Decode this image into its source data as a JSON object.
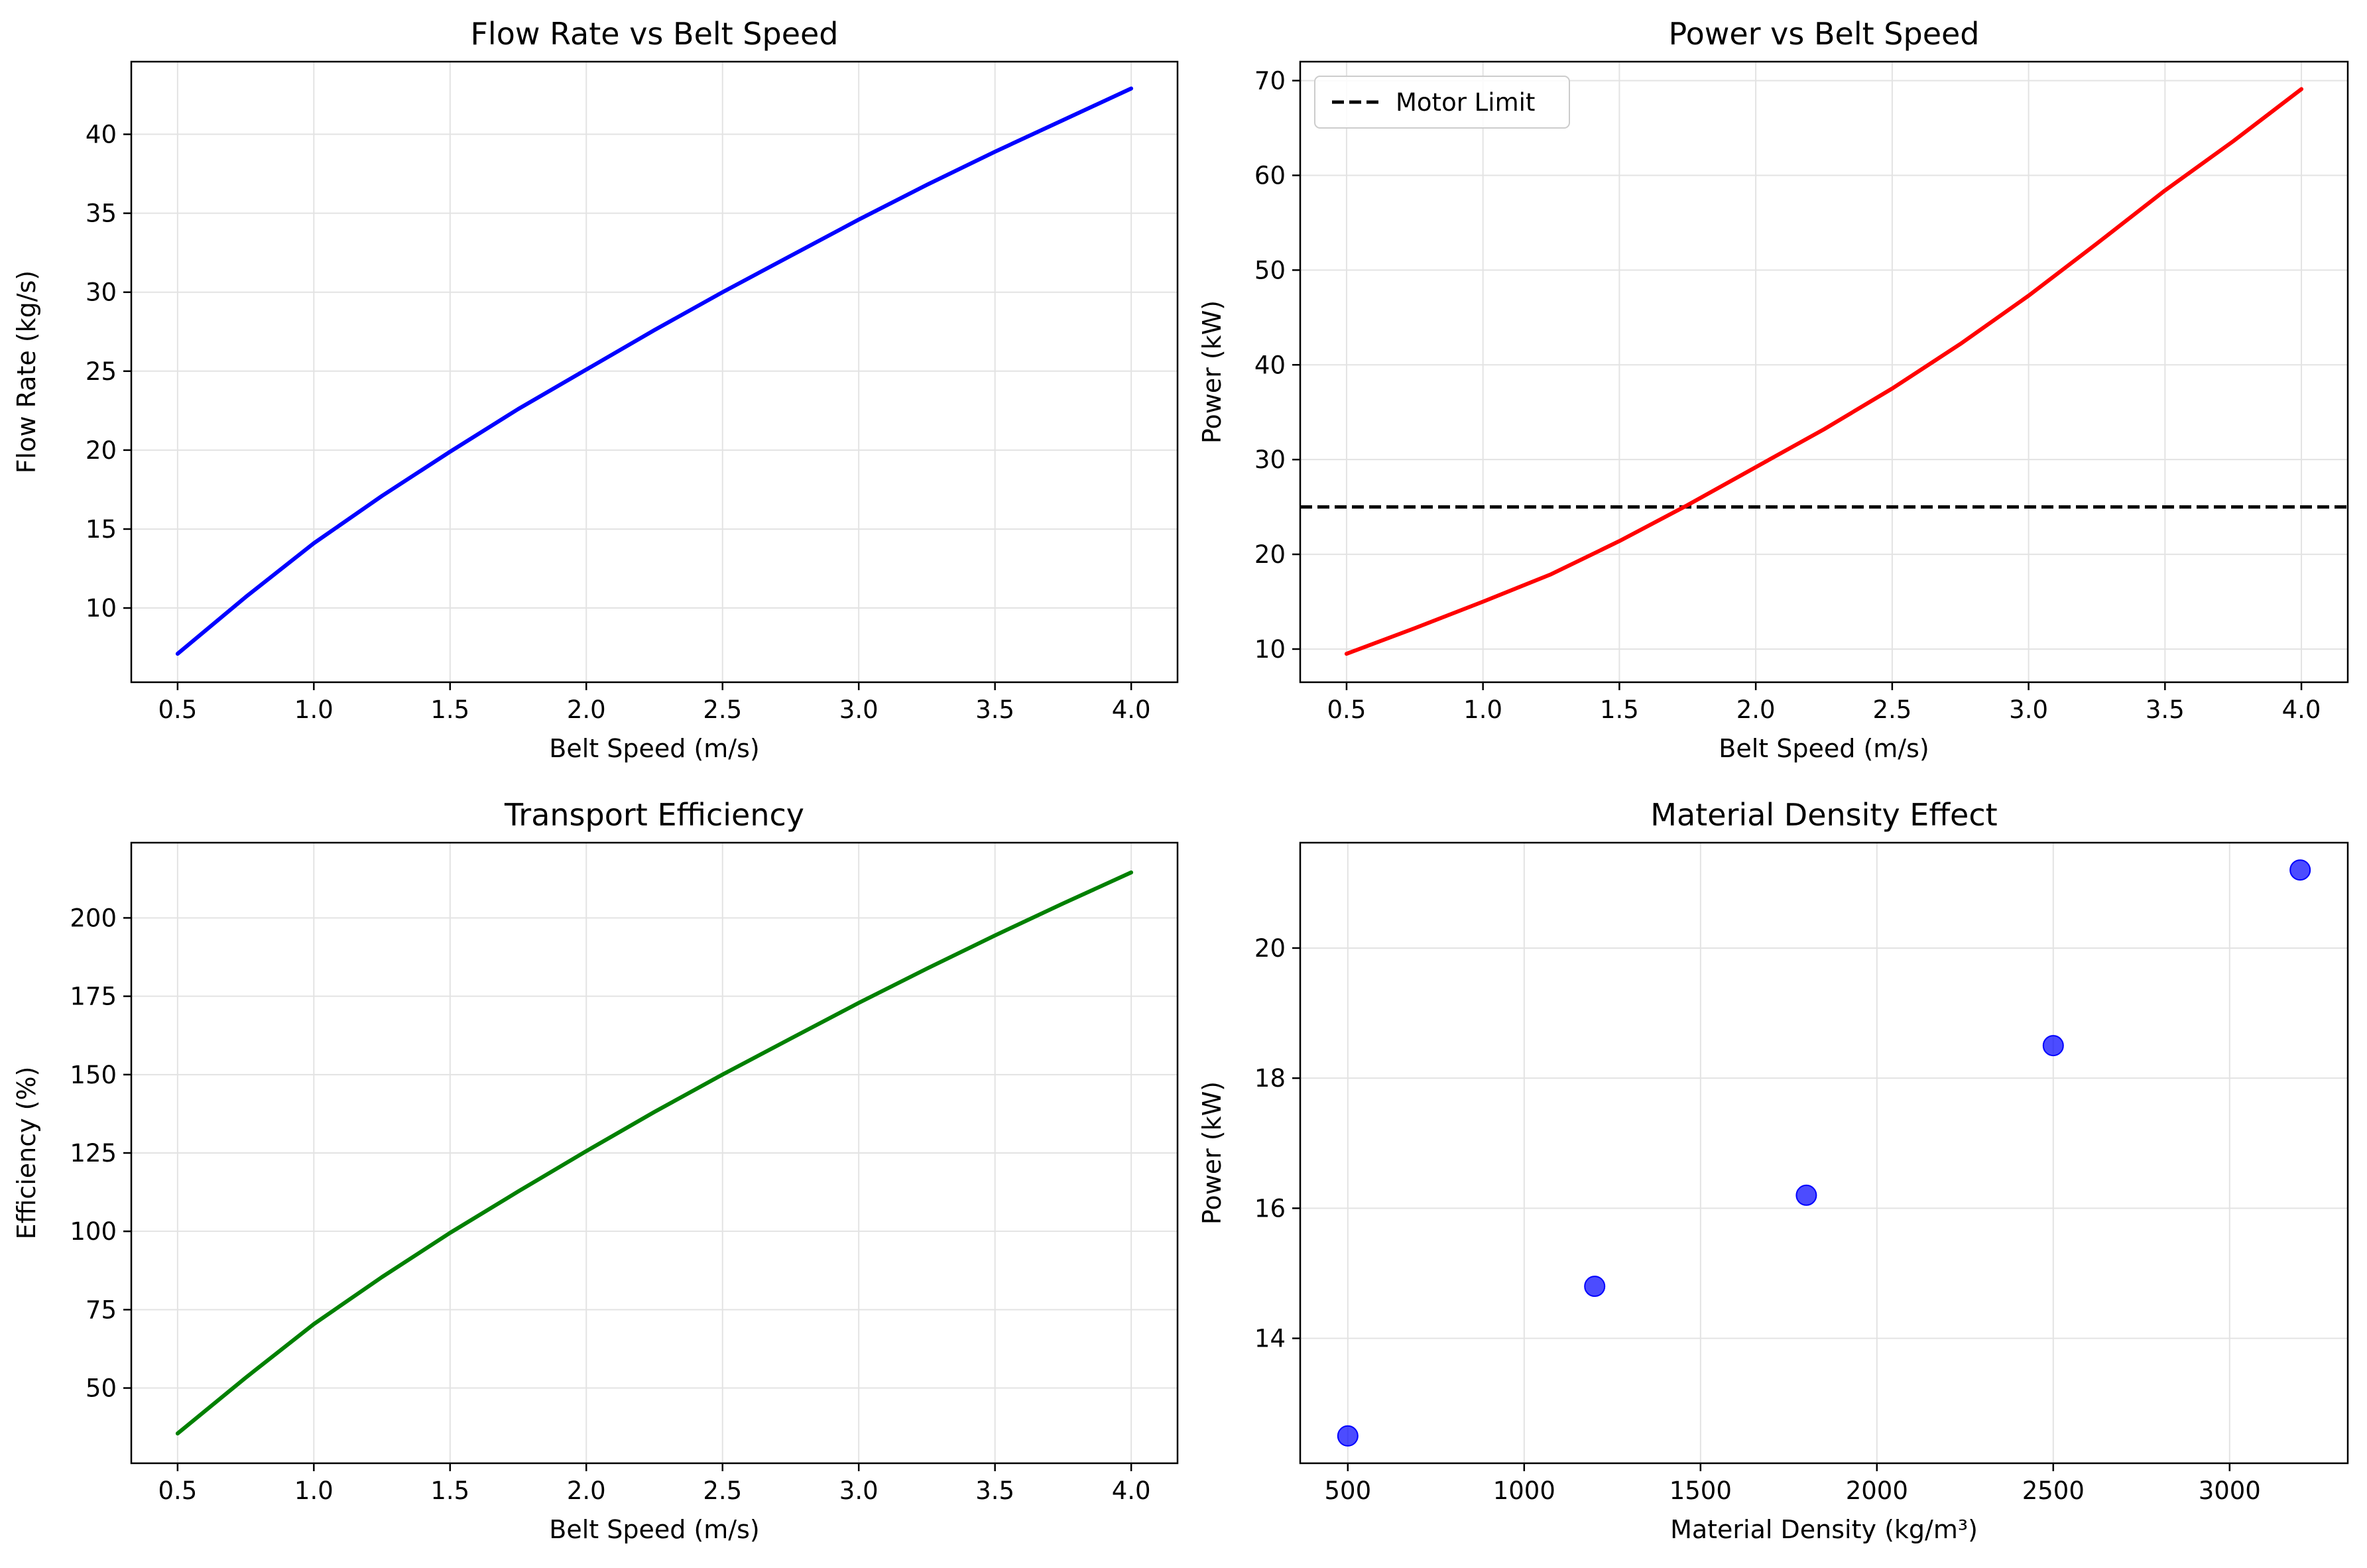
{
  "chart_data": [
    {
      "type": "line",
      "title": "Flow Rate vs Belt Speed",
      "xlabel": "Belt Speed (m/s)",
      "ylabel": "Flow Rate (kg/s)",
      "xlim": [
        0.33,
        4.17
      ],
      "ylim": [
        5.3,
        44.6
      ],
      "xticks": [
        0.5,
        1.0,
        1.5,
        2.0,
        2.5,
        3.0,
        3.5,
        4.0
      ],
      "yticks": [
        10,
        15,
        20,
        25,
        30,
        35,
        40
      ],
      "grid": true,
      "series": [
        {
          "color": "#0000ff",
          "x": [
            0.5,
            0.75,
            1.0,
            1.25,
            1.5,
            1.75,
            2.0,
            2.25,
            2.5,
            2.75,
            3.0,
            3.25,
            3.5,
            3.75,
            4.0
          ],
          "y": [
            7.1,
            10.7,
            14.1,
            17.1,
            19.9,
            22.6,
            25.1,
            27.6,
            30.0,
            32.3,
            34.6,
            36.8,
            38.9,
            40.9,
            42.9
          ]
        }
      ]
    },
    {
      "type": "line",
      "title": "Power vs Belt Speed",
      "xlabel": "Belt Speed (m/s)",
      "ylabel": "Power (kW)",
      "xlim": [
        0.33,
        4.17
      ],
      "ylim": [
        6.5,
        72.0
      ],
      "xticks": [
        0.5,
        1.0,
        1.5,
        2.0,
        2.5,
        3.0,
        3.5,
        4.0
      ],
      "yticks": [
        10,
        20,
        30,
        40,
        50,
        60,
        70
      ],
      "grid": true,
      "legend_position": "top-left",
      "series": [
        {
          "color": "#ff0000",
          "x": [
            0.5,
            0.75,
            1.0,
            1.25,
            1.5,
            1.75,
            2.0,
            2.25,
            2.5,
            2.75,
            3.0,
            3.25,
            3.5,
            3.75,
            4.0
          ],
          "y": [
            9.5,
            12.2,
            15.0,
            17.9,
            21.4,
            25.2,
            29.2,
            33.2,
            37.5,
            42.2,
            47.3,
            52.8,
            58.4,
            63.6,
            69.1
          ]
        }
      ],
      "reference_line": {
        "name": "Motor Limit",
        "y": 25,
        "color": "#000000",
        "style": "dashed"
      }
    },
    {
      "type": "line",
      "title": "Transport Efficiency",
      "xlabel": "Belt Speed (m/s)",
      "ylabel": "Efficiency (%)",
      "xlim": [
        0.33,
        4.17
      ],
      "ylim": [
        26.0,
        224.0
      ],
      "xticks": [
        0.5,
        1.0,
        1.5,
        2.0,
        2.5,
        3.0,
        3.5,
        4.0
      ],
      "yticks": [
        50,
        75,
        100,
        125,
        150,
        175,
        200
      ],
      "grid": true,
      "series": [
        {
          "color": "#008000",
          "x": [
            0.5,
            0.75,
            1.0,
            1.25,
            1.5,
            1.75,
            2.0,
            2.25,
            2.5,
            2.75,
            3.0,
            3.25,
            3.5,
            3.75,
            4.0
          ],
          "y": [
            35.5,
            53.3,
            70.4,
            85.4,
            99.5,
            112.7,
            125.6,
            138.1,
            150.0,
            161.5,
            172.9,
            183.8,
            194.4,
            204.6,
            214.5
          ]
        }
      ]
    },
    {
      "type": "scatter",
      "title": "Material Density Effect",
      "xlabel": "Material Density (kg/m³)",
      "ylabel": "Power (kW)",
      "xlim": [
        365,
        3335
      ],
      "ylim": [
        12.08,
        21.62
      ],
      "xticks": [
        500,
        1000,
        1500,
        2000,
        2500,
        3000
      ],
      "yticks": [
        14,
        16,
        18,
        20
      ],
      "grid": true,
      "series": [
        {
          "color": "#0000ff",
          "x": [
            500,
            1200,
            1800,
            2500,
            3200
          ],
          "y": [
            12.5,
            14.8,
            16.2,
            18.5,
            21.2
          ]
        }
      ]
    }
  ]
}
